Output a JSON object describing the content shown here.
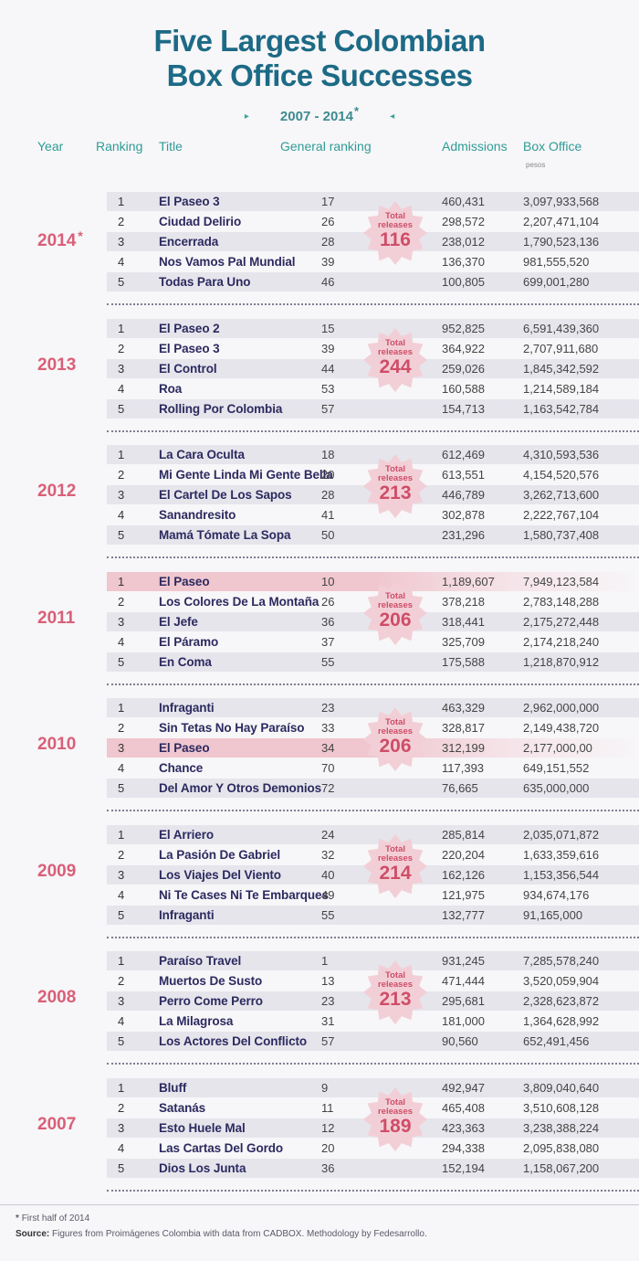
{
  "header": {
    "title_line1": "Five Largest Colombian",
    "title_line2": "Box Office Successes",
    "period": "2007 - 2014",
    "period_star": "*",
    "arrow_left": "▸",
    "arrow_right": "◂"
  },
  "columns": {
    "year": "Year",
    "ranking": "Ranking",
    "title": "Title",
    "general": "General ranking",
    "admissions": "Admissions",
    "box_office": "Box Office",
    "pesos": "pesos"
  },
  "badge_label1": "Total",
  "badge_label2": "releases",
  "colors": {
    "title": "#1c6a86",
    "accent": "#2f9c97",
    "year": "#d95f78",
    "badge_fill": "#f2cfd6",
    "highlight": "#f0c6cf"
  },
  "chart_data": {
    "type": "table",
    "title": "Five Largest Colombian Box Office Successes",
    "subtitle": "2007 - 2014*",
    "years": [
      {
        "year": "2014",
        "star": "*",
        "total_releases": "116",
        "films": [
          {
            "rank": "1",
            "title": "El Paseo 3",
            "general": "17",
            "admissions": "460,431",
            "box_office": "3,097,933,568"
          },
          {
            "rank": "2",
            "title": "Ciudad Delirio",
            "general": "26",
            "admissions": "298,572",
            "box_office": "2,207,471,104"
          },
          {
            "rank": "3",
            "title": "Encerrada",
            "general": "28",
            "admissions": "238,012",
            "box_office": "1,790,523,136"
          },
          {
            "rank": "4",
            "title": "Nos Vamos Pal Mundial",
            "general": "39",
            "admissions": "136,370",
            "box_office": "981,555,520"
          },
          {
            "rank": "5",
            "title": "Todas Para Uno",
            "general": "46",
            "admissions": "100,805",
            "box_office": "699,001,280"
          }
        ]
      },
      {
        "year": "2013",
        "star": "",
        "total_releases": "244",
        "films": [
          {
            "rank": "1",
            "title": "El Paseo 2",
            "general": "15",
            "admissions": "952,825",
            "box_office": "6,591,439,360"
          },
          {
            "rank": "2",
            "title": "El Paseo 3",
            "general": "39",
            "admissions": "364,922",
            "box_office": "2,707,911,680"
          },
          {
            "rank": "3",
            "title": "El Control",
            "general": "44",
            "admissions": "259,026",
            "box_office": "1,845,342,592"
          },
          {
            "rank": "4",
            "title": "Roa",
            "general": "53",
            "admissions": "160,588",
            "box_office": "1,214,589,184"
          },
          {
            "rank": "5",
            "title": "Rolling Por Colombia",
            "general": "57",
            "admissions": "154,713",
            "box_office": "1,163,542,784"
          }
        ]
      },
      {
        "year": "2012",
        "star": "",
        "total_releases": "213",
        "films": [
          {
            "rank": "1",
            "title": "La Cara Oculta",
            "general": "18",
            "admissions": "612,469",
            "box_office": "4,310,593,536"
          },
          {
            "rank": "2",
            "title": "Mi Gente Linda Mi Gente Bella",
            "general": "20",
            "admissions": "613,551",
            "box_office": "4,154,520,576"
          },
          {
            "rank": "3",
            "title": "El Cartel De Los Sapos",
            "general": "28",
            "admissions": "446,789",
            "box_office": "3,262,713,600"
          },
          {
            "rank": "4",
            "title": "Sanandresito",
            "general": "41",
            "admissions": "302,878",
            "box_office": "2,222,767,104"
          },
          {
            "rank": "5",
            "title": "Mamá Tómate La Sopa",
            "general": "50",
            "admissions": "231,296",
            "box_office": "1,580,737,408"
          }
        ]
      },
      {
        "year": "2011",
        "star": "",
        "total_releases": "206",
        "films": [
          {
            "rank": "1",
            "title": "El Paseo",
            "general": "10",
            "admissions": "1,189,607",
            "box_office": "7,949,123,584",
            "highlight": true
          },
          {
            "rank": "2",
            "title": "Los Colores De La Montaña",
            "general": "26",
            "admissions": "378,218",
            "box_office": "2,783,148,288"
          },
          {
            "rank": "3",
            "title": "El Jefe",
            "general": "36",
            "admissions": "318,441",
            "box_office": "2,175,272,448"
          },
          {
            "rank": "4",
            "title": "El Páramo",
            "general": "37",
            "admissions": "325,709",
            "box_office": "2,174,218,240"
          },
          {
            "rank": "5",
            "title": "En Coma",
            "general": "55",
            "admissions": "175,588",
            "box_office": "1,218,870,912"
          }
        ]
      },
      {
        "year": "2010",
        "star": "",
        "total_releases": "206",
        "films": [
          {
            "rank": "1",
            "title": "Infraganti",
            "general": "23",
            "admissions": "463,329",
            "box_office": "2,962,000,000"
          },
          {
            "rank": "2",
            "title": "Sin Tetas No Hay Paraíso",
            "general": "33",
            "admissions": "328,817",
            "box_office": "2,149,438,720"
          },
          {
            "rank": "3",
            "title": "El Paseo",
            "general": "34",
            "admissions": "312,199",
            "box_office": "2,177,000,00",
            "highlight": true
          },
          {
            "rank": "4",
            "title": "Chance",
            "general": "70",
            "admissions": "117,393",
            "box_office": "649,151,552"
          },
          {
            "rank": "5",
            "title": "Del Amor Y Otros Demonios",
            "general": "72",
            "admissions": "76,665",
            "box_office": "635,000,000"
          }
        ]
      },
      {
        "year": "2009",
        "star": "",
        "total_releases": "214",
        "films": [
          {
            "rank": "1",
            "title": "El Arriero",
            "general": "24",
            "admissions": "285,814",
            "box_office": "2,035,071,872"
          },
          {
            "rank": "2",
            "title": "La Pasión De Gabriel",
            "general": "32",
            "admissions": "220,204",
            "box_office": "1,633,359,616"
          },
          {
            "rank": "3",
            "title": "Los Viajes Del Viento",
            "general": "40",
            "admissions": "162,126",
            "box_office": "1,153,356,544"
          },
          {
            "rank": "4",
            "title": "Ni Te Cases Ni Te Embarques",
            "general": "49",
            "admissions": "121,975",
            "box_office": "934,674,176"
          },
          {
            "rank": "5",
            "title": "Infraganti",
            "general": "55",
            "admissions": "132,777",
            "box_office": "91,165,000"
          }
        ]
      },
      {
        "year": "2008",
        "star": "",
        "total_releases": "213",
        "films": [
          {
            "rank": "1",
            "title": "Paraíso Travel",
            "general": "1",
            "admissions": "931,245",
            "box_office": "7,285,578,240"
          },
          {
            "rank": "2",
            "title": "Muertos De Susto",
            "general": "13",
            "admissions": "471,444",
            "box_office": "3,520,059,904"
          },
          {
            "rank": "3",
            "title": "Perro Come Perro",
            "general": "23",
            "admissions": "295,681",
            "box_office": "2,328,623,872"
          },
          {
            "rank": "4",
            "title": "La Milagrosa",
            "general": "31",
            "admissions": "181,000",
            "box_office": "1,364,628,992"
          },
          {
            "rank": "5",
            "title": "Los Actores Del Conflicto",
            "general": "57",
            "admissions": "90,560",
            "box_office": "652,491,456"
          }
        ]
      },
      {
        "year": "2007",
        "star": "",
        "total_releases": "189",
        "films": [
          {
            "rank": "1",
            "title": "Bluff",
            "general": "9",
            "admissions": "492,947",
            "box_office": "3,809,040,640"
          },
          {
            "rank": "2",
            "title": "Satanás",
            "general": "11",
            "admissions": "465,408",
            "box_office": "3,510,608,128"
          },
          {
            "rank": "3",
            "title": "Esto Huele Mal",
            "general": "12",
            "admissions": "423,363",
            "box_office": "3,238,388,224"
          },
          {
            "rank": "4",
            "title": "Las Cartas Del Gordo",
            "general": "20",
            "admissions": "294,338",
            "box_office": "2,095,838,080"
          },
          {
            "rank": "5",
            "title": "Dios Los Junta",
            "general": "36",
            "admissions": "152,194",
            "box_office": "1,158,067,200"
          }
        ]
      }
    ]
  },
  "footer": {
    "note_star": "*",
    "note": "First half of 2014",
    "source_label": "Source:",
    "source_text": "Figures from Proimágenes Colombia with data from CADBOX. Methodology by Fedesarrollo."
  }
}
